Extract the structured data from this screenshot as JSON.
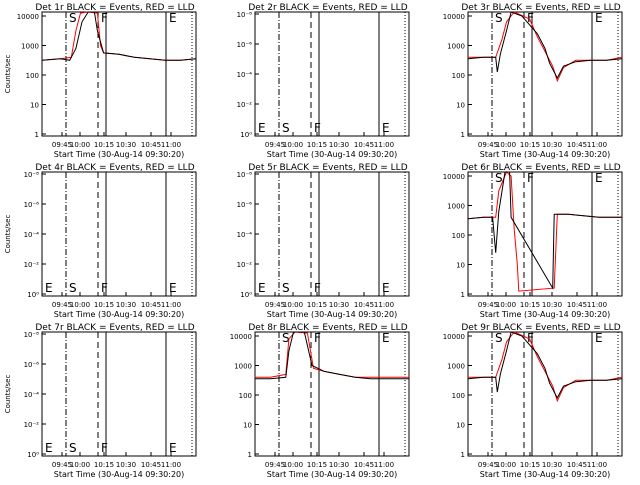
{
  "colors": {
    "events": "#000000",
    "lld": "#ff0000"
  },
  "chart_data": [
    {
      "type": "line",
      "title": "Det 1r BLACK = Events, RED = LLD",
      "xlabel": "Start Time (30-Aug-14 09:30:20)",
      "ylabel": "Counts/sec",
      "xticks": [
        "09:45",
        "10:00",
        "10:15",
        "10:30",
        "10:45",
        "11:00"
      ],
      "yticks": [
        "1",
        "10",
        "100",
        "1000",
        "10000"
      ],
      "markers": [
        {
          "label": "S",
          "tag": "s"
        },
        {
          "label": "F",
          "tag": "f"
        },
        {
          "label": "E",
          "tag": "e"
        }
      ],
      "shape": "A",
      "scale": "log"
    },
    {
      "type": "line",
      "title": "Det 2r BLACK = Events, RED = LLD",
      "xlabel": "Start Time (30-Aug-14 09:30:20)",
      "ylabel": "",
      "xticks": [
        "09:45",
        "10:00",
        "10:15",
        "10:30",
        "10:45",
        "11:00"
      ],
      "yticks": [
        "10⁰",
        "10⁻²",
        "10⁻⁴",
        "10⁻⁶",
        "10⁻⁸"
      ],
      "markers": [
        {
          "label": "E",
          "tag": "e0"
        },
        {
          "label": "S",
          "tag": "s"
        },
        {
          "label": "F",
          "tag": "f"
        },
        {
          "label": "E",
          "tag": "e"
        }
      ],
      "shape": "none",
      "scale": "dummy"
    },
    {
      "type": "line",
      "title": "Det 3r BLACK = Events, RED = LLD",
      "xlabel": "Start Time (30-Aug-14 09:30:20)",
      "ylabel": "",
      "xticks": [
        "09:45",
        "10:00",
        "10:15",
        "10:30",
        "10:45",
        "11:00"
      ],
      "yticks": [
        "1",
        "10",
        "100",
        "1000",
        "10000"
      ],
      "markers": [
        {
          "label": "S",
          "tag": "s"
        },
        {
          "label": "F",
          "tag": "f"
        },
        {
          "label": "E",
          "tag": "e"
        }
      ],
      "shape": "B",
      "scale": "log"
    },
    {
      "type": "line",
      "title": "Det 4r BLACK = Events, RED = LLD",
      "xlabel": "Start Time (30-Aug-14 09:30:20)",
      "ylabel": "Counts/sec",
      "xticks": [
        "09:45",
        "10:00",
        "10:15",
        "10:30",
        "10:45",
        "11:00"
      ],
      "yticks": [
        "10⁰",
        "10⁻²",
        "10⁻⁴",
        "10⁻⁶",
        "10⁻⁸"
      ],
      "markers": [
        {
          "label": "E",
          "tag": "e0"
        },
        {
          "label": "S",
          "tag": "s"
        },
        {
          "label": "F",
          "tag": "f"
        },
        {
          "label": "E",
          "tag": "e"
        }
      ],
      "shape": "none",
      "scale": "dummy"
    },
    {
      "type": "line",
      "title": "Det 5r BLACK = Events, RED = LLD",
      "xlabel": "Start Time (30-Aug-14 09:30:20)",
      "ylabel": "",
      "xticks": [
        "09:45",
        "10:00",
        "10:15",
        "10:30",
        "10:45",
        "11:00"
      ],
      "yticks": [
        "10⁰",
        "10⁻²",
        "10⁻⁴",
        "10⁻⁶",
        "10⁻⁸"
      ],
      "markers": [
        {
          "label": "E",
          "tag": "e0"
        },
        {
          "label": "S",
          "tag": "s"
        },
        {
          "label": "F",
          "tag": "f"
        },
        {
          "label": "E",
          "tag": "e"
        }
      ],
      "shape": "none",
      "scale": "dummy"
    },
    {
      "type": "line",
      "title": "Det 6r BLACK = Events, RED = LLD",
      "xlabel": "Start Time (30-Aug-14 09:30:20)",
      "ylabel": "",
      "xticks": [
        "09:45",
        "10:00",
        "10:15",
        "10:30",
        "10:45",
        "11:00"
      ],
      "yticks": [
        "1",
        "10",
        "100",
        "1000",
        "10000"
      ],
      "markers": [
        {
          "label": "S",
          "tag": "s"
        },
        {
          "label": "F",
          "tag": "f"
        },
        {
          "label": "E",
          "tag": "e"
        }
      ],
      "shape": "C",
      "scale": "log"
    },
    {
      "type": "line",
      "title": "Det 7r BLACK = Events, RED = LLD",
      "xlabel": "Start Time (30-Aug-14 09:30:20)",
      "ylabel": "Counts/sec",
      "xticks": [
        "09:45",
        "10:00",
        "10:15",
        "10:30",
        "10:45",
        "11:00"
      ],
      "yticks": [
        "10⁰",
        "10⁻²",
        "10⁻⁴",
        "10⁻⁶",
        "10⁻⁸"
      ],
      "markers": [
        {
          "label": "E",
          "tag": "e0"
        },
        {
          "label": "S",
          "tag": "s"
        },
        {
          "label": "F",
          "tag": "f"
        },
        {
          "label": "E",
          "tag": "e"
        }
      ],
      "shape": "none",
      "scale": "dummy"
    },
    {
      "type": "line",
      "title": "Det 8r BLACK = Events, RED = LLD",
      "xlabel": "Start Time (30-Aug-14 09:30:20)",
      "ylabel": "",
      "xticks": [
        "09:45",
        "10:00",
        "10:15",
        "10:30",
        "10:45",
        "11:00"
      ],
      "yticks": [
        "1",
        "10",
        "100",
        "1000",
        "10000"
      ],
      "markers": [
        {
          "label": "S",
          "tag": "s"
        },
        {
          "label": "F",
          "tag": "f"
        },
        {
          "label": "E",
          "tag": "e"
        }
      ],
      "shape": "D",
      "scale": "log"
    },
    {
      "type": "line",
      "title": "Det 9r BLACK = Events, RED = LLD",
      "xlabel": "Start Time (30-Aug-14 09:30:20)",
      "ylabel": "",
      "xticks": [
        "09:45",
        "10:00",
        "10:15",
        "10:30",
        "10:45",
        "11:00"
      ],
      "yticks": [
        "1",
        "10",
        "100",
        "1000",
        "10000"
      ],
      "markers": [
        {
          "label": "S",
          "tag": "s"
        },
        {
          "label": "F",
          "tag": "f"
        },
        {
          "label": "E",
          "tag": "e"
        }
      ],
      "shape": "B",
      "scale": "log"
    }
  ]
}
